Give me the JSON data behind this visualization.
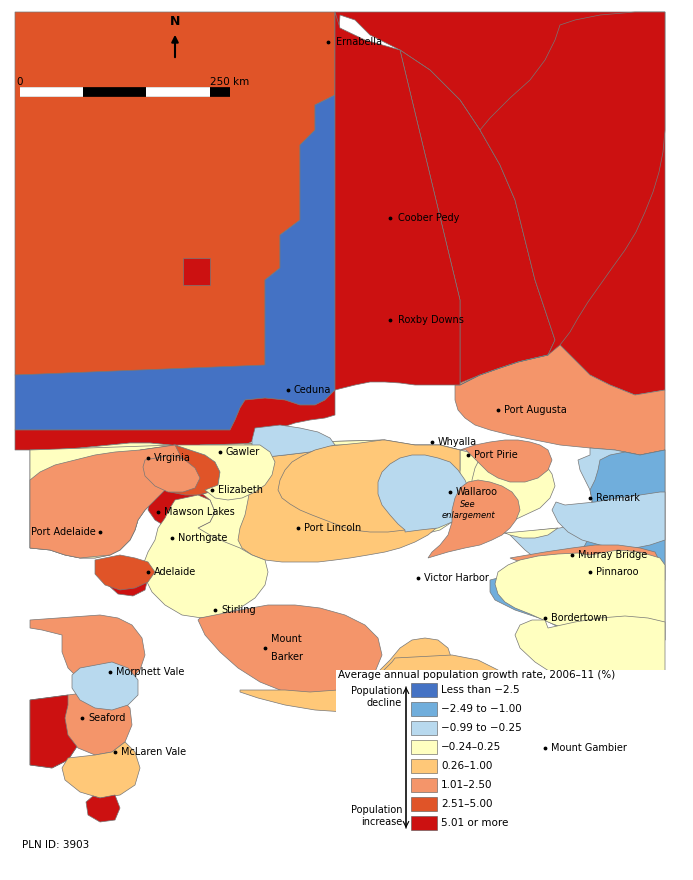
{
  "legend_title": "Average annual population growth rate, 2006–11 (%)",
  "legend_items": [
    {
      "label": "Less than −2.5",
      "color": "#4472C4"
    },
    {
      "label": "−2.49 to −1.00",
      "color": "#70AEDC"
    },
    {
      "label": "−0.99 to −0.25",
      "color": "#B8D9EE"
    },
    {
      "label": "−0.24–0.25",
      "color": "#FFFFC0"
    },
    {
      "label": "0.26–1.00",
      "color": "#FFC878"
    },
    {
      "label": "1.01–2.50",
      "color": "#F4956A"
    },
    {
      "label": "2.51–5.00",
      "color": "#E05428"
    },
    {
      "label": "5.01 or more",
      "color": "#CC1111"
    }
  ],
  "decline_label": "Population\ndecline",
  "increase_label": "Population\nincrease",
  "pln_id": "PLN ID: 3903",
  "background_color": "#FFFFFF",
  "figsize": [
    6.93,
    8.8
  ],
  "dpi": 100
}
